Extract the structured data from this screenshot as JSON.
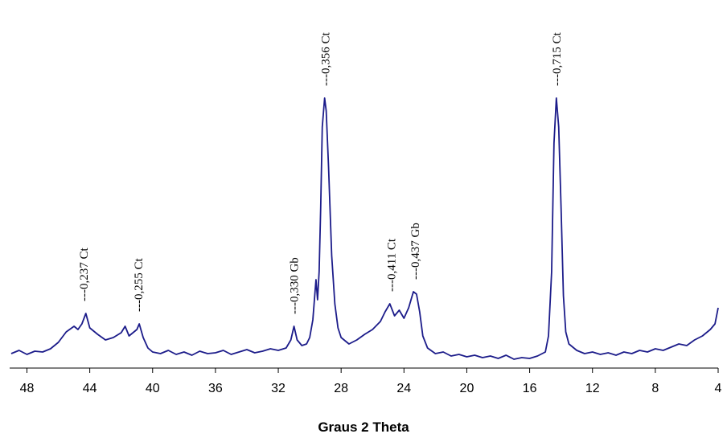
{
  "chart_data": {
    "type": "line",
    "x_label": "Graus 2 Theta",
    "xlim": [
      49.1,
      4
    ],
    "ylim": [
      0,
      340
    ],
    "xticks": [
      48,
      44,
      40,
      36,
      32,
      28,
      24,
      20,
      16,
      12,
      8,
      4
    ],
    "series": [
      {
        "color": "#1c1c8a",
        "x": [
          49,
          48.5,
          48,
          47.5,
          47,
          46.5,
          46,
          45.5,
          45,
          44.75,
          44.5,
          44.25,
          44,
          43.5,
          43,
          42.5,
          42,
          41.75,
          41.5,
          41,
          40.85,
          40.6,
          40.3,
          40,
          39.5,
          39,
          38.5,
          38,
          37.5,
          37,
          36.5,
          36,
          35.5,
          35,
          34.5,
          34,
          33.5,
          33,
          32.5,
          32,
          31.5,
          31.2,
          31,
          30.8,
          30.5,
          30.2,
          30,
          29.8,
          29.6,
          29.5,
          29.4,
          29.3,
          29.2,
          29.05,
          28.95,
          28.8,
          28.6,
          28.4,
          28.2,
          28,
          27.5,
          27,
          26.5,
          26,
          25.5,
          25.2,
          24.9,
          24.6,
          24.3,
          24,
          23.7,
          23.4,
          23.2,
          23,
          22.8,
          22.5,
          22,
          21.5,
          21,
          20.5,
          20,
          19.5,
          19,
          18.5,
          18,
          17.5,
          17,
          16.5,
          16,
          15.5,
          15,
          14.8,
          14.6,
          14.45,
          14.3,
          14.15,
          14,
          13.85,
          13.7,
          13.5,
          13,
          12.5,
          12,
          11.5,
          11,
          10.5,
          10,
          9.5,
          9,
          8.5,
          8,
          7.5,
          7,
          6.5,
          6,
          5.5,
          5,
          4.5,
          4.2,
          4
        ],
        "values": [
          18,
          22,
          17,
          21,
          20,
          24,
          32,
          45,
          52,
          48,
          55,
          68,
          50,
          42,
          35,
          38,
          44,
          52,
          40,
          48,
          55,
          38,
          25,
          20,
          18,
          22,
          17,
          20,
          16,
          21,
          18,
          19,
          22,
          17,
          20,
          23,
          19,
          21,
          24,
          22,
          25,
          35,
          52,
          35,
          28,
          30,
          38,
          60,
          110,
          85,
          120,
          200,
          300,
          336,
          320,
          250,
          140,
          80,
          50,
          38,
          30,
          35,
          42,
          48,
          58,
          70,
          80,
          65,
          72,
          62,
          75,
          95,
          92,
          70,
          40,
          25,
          18,
          20,
          15,
          17,
          14,
          16,
          13,
          15,
          12,
          16,
          11,
          13,
          12,
          15,
          20,
          40,
          120,
          280,
          336,
          300,
          200,
          90,
          45,
          30,
          22,
          18,
          20,
          17,
          19,
          16,
          20,
          18,
          22,
          20,
          24,
          22,
          26,
          30,
          28,
          35,
          40,
          48,
          55,
          75
        ]
      }
    ],
    "annotations": [
      {
        "text": "---0,237 Ct",
        "x": 44.4
      },
      {
        "text": "---0,255 Ct",
        "x": 40.9
      },
      {
        "text": "---0,330 Gb",
        "x": 31.0
      },
      {
        "text": "---0,356 Ct",
        "x": 29.0
      },
      {
        "text": "---0,411 Ct",
        "x": 24.8
      },
      {
        "text": "---0,437 Gb",
        "x": 23.3
      },
      {
        "text": "---0,715 Ct",
        "x": 14.3
      }
    ]
  }
}
